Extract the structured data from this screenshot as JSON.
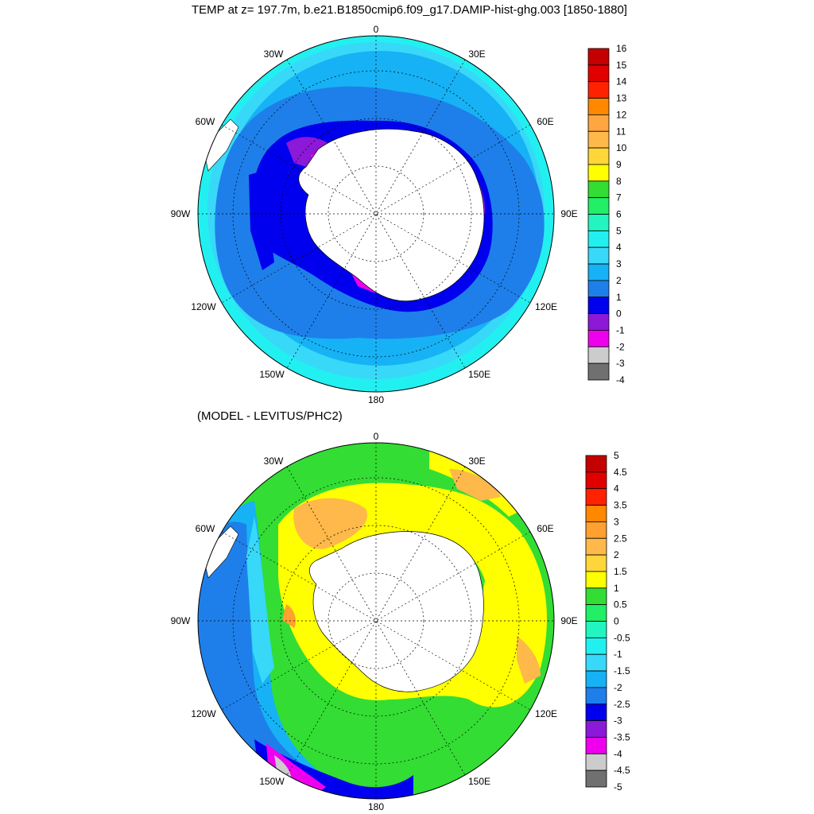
{
  "top_panel": {
    "title": "TEMP at z= 197.7m, b.e21.B1850cmip6.f09_g17.DAMIP-hist-ghg.003 [1850-1880]",
    "lon_labels": [
      "0",
      "30E",
      "60E",
      "90E",
      "120E",
      "150E",
      "180",
      "150W",
      "120W",
      "90W",
      "60W",
      "30W"
    ],
    "colorbar_labels": [
      "16",
      "15",
      "14",
      "13",
      "12",
      "11",
      "10",
      "9",
      "8",
      "7",
      "6",
      "5",
      "4",
      "3",
      "2",
      "1",
      "0",
      "-1",
      "-2",
      "-3",
      "-4"
    ],
    "colorbar_colors": [
      "#c40000",
      "#e10000",
      "#ff2200",
      "#ff8800",
      "#ffa640",
      "#ffb84a",
      "#ffd63a",
      "#ffff00",
      "#33dd33",
      "#22ee66",
      "#22f5c0",
      "#22f0f0",
      "#38d8f8",
      "#16b2f5",
      "#1e7fea",
      "#0000ee",
      "#8c18d8",
      "#ee00ee",
      "#cccccc",
      "#707070"
    ]
  },
  "bottom_panel": {
    "title": "(MODEL - LEVITUS/PHC2)",
    "lon_labels": [
      "0",
      "30E",
      "60E",
      "90E",
      "120E",
      "150E",
      "180",
      "150W",
      "120W",
      "90W",
      "60W",
      "30W"
    ],
    "colorbar_labels": [
      "5",
      "4.5",
      "4",
      "3.5",
      "3",
      "2.5",
      "2",
      "1.5",
      "1",
      "0.5",
      "0",
      "-0.5",
      "-1",
      "-1.5",
      "-2",
      "-2.5",
      "-3",
      "-3.5",
      "-4",
      "-4.5",
      "-5"
    ],
    "colorbar_colors": [
      "#c40000",
      "#e10000",
      "#ff2200",
      "#ff8800",
      "#ffa030",
      "#ffb84a",
      "#ffd63a",
      "#ffff00",
      "#33dd33",
      "#22ee66",
      "#22f5c0",
      "#22f0f0",
      "#38d8f8",
      "#16b2f5",
      "#1e7fea",
      "#0000ee",
      "#8c18d8",
      "#ee00ee",
      "#cccccc",
      "#707070"
    ]
  }
}
